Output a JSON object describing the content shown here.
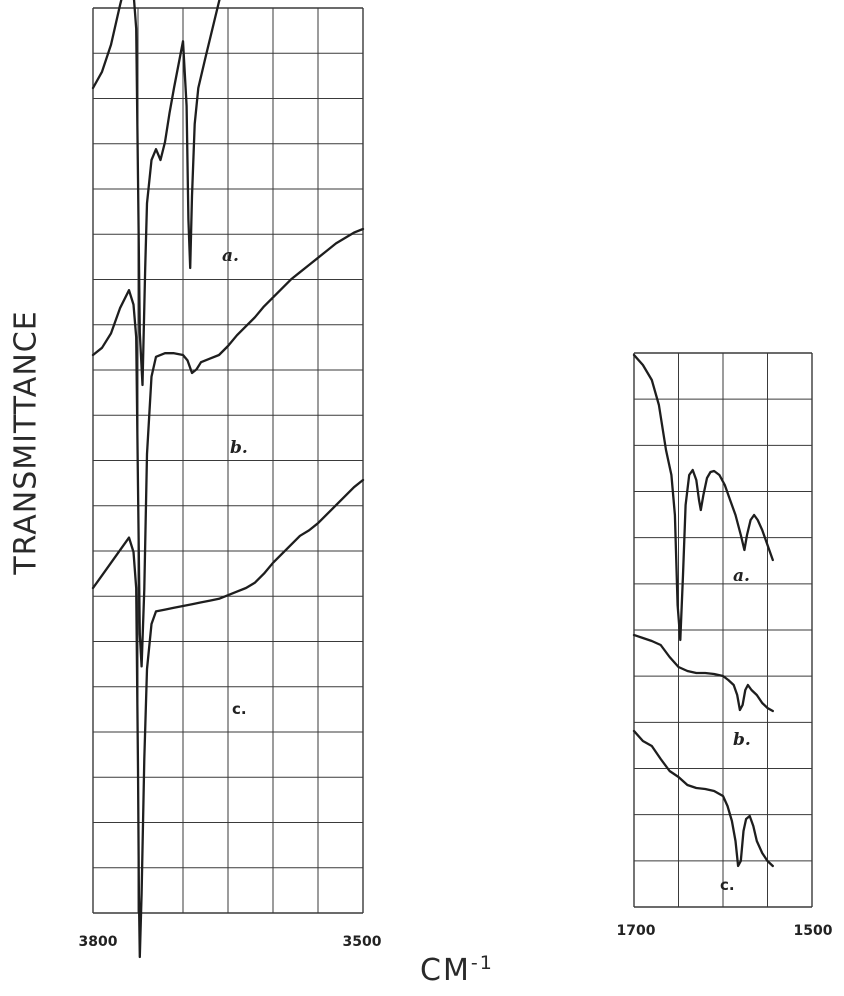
{
  "chart_data": [
    {
      "type": "line",
      "ylabel": "TRANSMITTANCE",
      "xlabel_main": "CM",
      "xlabel_exp": "-1",
      "xlim": [
        3800,
        3500
      ],
      "xticks": [
        "3800",
        "3500"
      ],
      "grid": true,
      "series": [
        {
          "name": "a.",
          "points": [
            [
              3800,
              0.0
            ],
            [
              3790,
              0.9
            ],
            [
              3780,
              2.4
            ],
            [
              3770,
              4.6
            ],
            [
              3760,
              6.6
            ],
            [
              3755,
              5.3
            ],
            [
              3752,
              3.3
            ],
            [
              3750,
              -5.0
            ],
            [
              3748,
              -13.6
            ],
            [
              3745,
              -16.5
            ],
            [
              3742,
              -10.0
            ],
            [
              3740,
              -6.4
            ],
            [
              3735,
              -4.0
            ],
            [
              3730,
              -3.4
            ],
            [
              3725,
              -4.0
            ],
            [
              3720,
              -3.0
            ],
            [
              3715,
              -1.4
            ],
            [
              3710,
              0.0
            ],
            [
              3705,
              1.3
            ],
            [
              3700,
              2.6
            ],
            [
              3696,
              -1.0
            ],
            [
              3694,
              -7.3
            ],
            [
              3692,
              -10.0
            ],
            [
              3690,
              -6.0
            ],
            [
              3687,
              -2.0
            ],
            [
              3683,
              0.0
            ],
            [
              3675,
              1.7
            ],
            [
              3660,
              4.8
            ],
            [
              3640,
              8.4
            ],
            [
              3620,
              11.7
            ],
            [
              3600,
              15.0
            ],
            [
              3590,
              16.7
            ],
            [
              3580,
              18.4
            ],
            [
              3570,
              20.1
            ],
            [
              3560,
              21.7
            ],
            [
              3550,
              23.2
            ],
            [
              3540,
              24.6
            ],
            [
              3530,
              26.0
            ],
            [
              3520,
              27.4
            ],
            [
              3510,
              28.8
            ],
            [
              3500,
              30.0
            ]
          ]
        },
        {
          "name": "b.",
          "points": [
            [
              3800,
              0.0
            ],
            [
              3790,
              0.4
            ],
            [
              3780,
              1.2
            ],
            [
              3770,
              2.6
            ],
            [
              3760,
              3.6
            ],
            [
              3755,
              2.8
            ],
            [
              3752,
              1.0
            ],
            [
              3750,
              -7.3
            ],
            [
              3748,
              -15.5
            ],
            [
              3746,
              -17.3
            ],
            [
              3743,
              -13.0
            ],
            [
              3740,
              -5.5
            ],
            [
              3735,
              -1.2
            ],
            [
              3730,
              -0.1
            ],
            [
              3720,
              0.1
            ],
            [
              3710,
              0.1
            ],
            [
              3700,
              0.0
            ],
            [
              3695,
              -0.3
            ],
            [
              3690,
              -1.0
            ],
            [
              3685,
              -0.8
            ],
            [
              3680,
              -0.4
            ],
            [
              3670,
              -0.2
            ],
            [
              3660,
              0.0
            ],
            [
              3650,
              0.5
            ],
            [
              3640,
              1.1
            ],
            [
              3630,
              1.6
            ],
            [
              3620,
              2.1
            ],
            [
              3610,
              2.7
            ],
            [
              3600,
              3.2
            ],
            [
              3590,
              3.7
            ],
            [
              3580,
              4.2
            ],
            [
              3570,
              4.6
            ],
            [
              3560,
              5.0
            ],
            [
              3550,
              5.4
            ],
            [
              3540,
              5.8
            ],
            [
              3530,
              6.2
            ],
            [
              3520,
              6.5
            ],
            [
              3510,
              6.8
            ],
            [
              3500,
              7.0
            ]
          ]
        },
        {
          "name": "c.",
          "points": [
            [
              3800,
              0.0
            ],
            [
              3790,
              0.7
            ],
            [
              3780,
              1.4
            ],
            [
              3770,
              2.1
            ],
            [
              3760,
              2.8
            ],
            [
              3755,
              2.0
            ],
            [
              3752,
              0.0
            ],
            [
              3750,
              -10.0
            ],
            [
              3749,
              -17.0
            ],
            [
              3748,
              -20.5
            ],
            [
              3746,
              -17.0
            ],
            [
              3743,
              -9.5
            ],
            [
              3740,
              -4.5
            ],
            [
              3735,
              -2.0
            ],
            [
              3730,
              -1.3
            ],
            [
              3720,
              -1.2
            ],
            [
              3710,
              -1.1
            ],
            [
              3700,
              -1.0
            ],
            [
              3690,
              -0.9
            ],
            [
              3680,
              -0.8
            ],
            [
              3670,
              -0.7
            ],
            [
              3660,
              -0.6
            ],
            [
              3650,
              -0.4
            ],
            [
              3640,
              -0.2
            ],
            [
              3630,
              0.0
            ],
            [
              3620,
              0.3
            ],
            [
              3610,
              0.8
            ],
            [
              3600,
              1.4
            ],
            [
              3590,
              1.9
            ],
            [
              3580,
              2.4
            ],
            [
              3570,
              2.9
            ],
            [
              3560,
              3.2
            ],
            [
              3550,
              3.6
            ],
            [
              3540,
              4.1
            ],
            [
              3530,
              4.6
            ],
            [
              3520,
              5.1
            ],
            [
              3510,
              5.6
            ],
            [
              3500,
              6.0
            ]
          ]
        }
      ]
    },
    {
      "type": "line",
      "xlim": [
        1700,
        1500
      ],
      "xticks": [
        "1700",
        "1500"
      ],
      "grid": true,
      "series": [
        {
          "name": "a.",
          "points": [
            [
              1700,
              0.0
            ],
            [
              1690,
              -1.0
            ],
            [
              1680,
              -2.5
            ],
            [
              1672,
              -5.0
            ],
            [
              1664,
              -9.5
            ],
            [
              1658,
              -12.0
            ],
            [
              1654,
              -16.0
            ],
            [
              1651,
              -25.0
            ],
            [
              1648,
              -28.5
            ],
            [
              1645,
              -22.0
            ],
            [
              1642,
              -15.0
            ],
            [
              1638,
              -12.0
            ],
            [
              1634,
              -11.5
            ],
            [
              1630,
              -12.5
            ],
            [
              1627,
              -14.5
            ],
            [
              1625,
              -15.5
            ],
            [
              1622,
              -14.0
            ],
            [
              1618,
              -12.3
            ],
            [
              1614,
              -11.7
            ],
            [
              1610,
              -11.6
            ],
            [
              1604,
              -12.0
            ],
            [
              1598,
              -13.0
            ],
            [
              1592,
              -14.5
            ],
            [
              1586,
              -16.0
            ],
            [
              1580,
              -18.0
            ],
            [
              1576,
              -19.5
            ],
            [
              1573,
              -18.0
            ],
            [
              1569,
              -16.5
            ],
            [
              1565,
              -16.0
            ],
            [
              1561,
              -16.5
            ],
            [
              1556,
              -17.5
            ],
            [
              1550,
              -19.0
            ],
            [
              1544,
              -20.5
            ]
          ]
        },
        {
          "name": "b.",
          "points": [
            [
              1700,
              0.0
            ],
            [
              1690,
              -0.3
            ],
            [
              1680,
              -0.6
            ],
            [
              1670,
              -1.0
            ],
            [
              1660,
              -2.2
            ],
            [
              1650,
              -3.2
            ],
            [
              1640,
              -3.6
            ],
            [
              1630,
              -3.8
            ],
            [
              1620,
              -3.8
            ],
            [
              1610,
              -3.9
            ],
            [
              1600,
              -4.1
            ],
            [
              1594,
              -4.5
            ],
            [
              1588,
              -5.0
            ],
            [
              1584,
              -6.0
            ],
            [
              1581,
              -7.5
            ],
            [
              1578,
              -7.0
            ],
            [
              1575,
              -5.5
            ],
            [
              1572,
              -5.0
            ],
            [
              1568,
              -5.5
            ],
            [
              1562,
              -6.0
            ],
            [
              1556,
              -6.8
            ],
            [
              1550,
              -7.3
            ],
            [
              1544,
              -7.6
            ]
          ]
        },
        {
          "name": "c.",
          "points": [
            [
              1700,
              0.0
            ],
            [
              1690,
              -1.0
            ],
            [
              1680,
              -1.5
            ],
            [
              1670,
              -2.8
            ],
            [
              1660,
              -4.0
            ],
            [
              1650,
              -4.6
            ],
            [
              1640,
              -5.4
            ],
            [
              1630,
              -5.7
            ],
            [
              1620,
              -5.8
            ],
            [
              1610,
              -6.0
            ],
            [
              1600,
              -6.5
            ],
            [
              1595,
              -7.5
            ],
            [
              1590,
              -9.0
            ],
            [
              1586,
              -11.0
            ],
            [
              1583,
              -13.5
            ],
            [
              1580,
              -13.0
            ],
            [
              1577,
              -10.0
            ],
            [
              1574,
              -8.8
            ],
            [
              1570,
              -8.5
            ],
            [
              1566,
              -9.5
            ],
            [
              1562,
              -11.0
            ],
            [
              1556,
              -12.2
            ],
            [
              1550,
              -13.0
            ],
            [
              1544,
              -13.5
            ]
          ]
        }
      ]
    }
  ]
}
